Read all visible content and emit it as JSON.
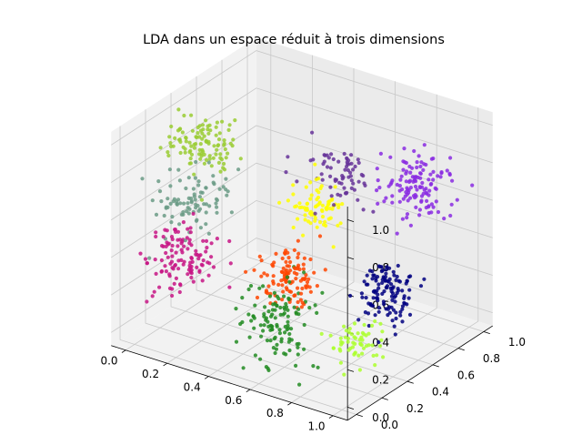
{
  "chart_data": {
    "type": "scatter",
    "title": "LDA dans un espace réduit à trois dimensions",
    "xlabel": "",
    "ylabel": "",
    "zlabel": "",
    "xlim": [
      0,
      1
    ],
    "ylim": [
      0,
      1
    ],
    "zlim": [
      0,
      1
    ],
    "x_ticks": [
      "0.0",
      "0.2",
      "0.4",
      "0.6",
      "0.8",
      "1.0"
    ],
    "y_ticks": [
      "0.0",
      "0.2",
      "0.4",
      "0.6",
      "0.8",
      "1.0"
    ],
    "z_ticks": [
      "0.0",
      "0.2",
      "0.4",
      "0.6",
      "0.8",
      "1.0"
    ],
    "grid": true,
    "legend": "none",
    "clusters": [
      {
        "color": "#9acd32",
        "center": [
          0.05,
          0.45,
          0.82
        ],
        "spread": [
          0.08,
          0.08,
          0.07
        ],
        "count": 110
      },
      {
        "color": "#6b9b86",
        "center": [
          0.08,
          0.32,
          0.58
        ],
        "spread": [
          0.08,
          0.08,
          0.07
        ],
        "count": 90
      },
      {
        "color": "#c71585",
        "center": [
          0.12,
          0.18,
          0.35
        ],
        "spread": [
          0.07,
          0.08,
          0.08
        ],
        "count": 120
      },
      {
        "color": "#8a2be2",
        "center": [
          0.82,
          0.88,
          0.68
        ],
        "spread": [
          0.07,
          0.07,
          0.07
        ],
        "count": 130
      },
      {
        "color": "#663399",
        "center": [
          0.55,
          0.72,
          0.7
        ],
        "spread": [
          0.08,
          0.08,
          0.07
        ],
        "count": 70
      },
      {
        "color": "#ffff00",
        "center": [
          0.5,
          0.62,
          0.55
        ],
        "spread": [
          0.06,
          0.06,
          0.05
        ],
        "count": 80
      },
      {
        "color": "#000080",
        "center": [
          0.88,
          0.55,
          0.28
        ],
        "spread": [
          0.06,
          0.07,
          0.08
        ],
        "count": 120
      },
      {
        "color": "#ff4500",
        "center": [
          0.5,
          0.4,
          0.3
        ],
        "spread": [
          0.06,
          0.06,
          0.07
        ],
        "count": 110
      },
      {
        "color": "#228b22",
        "center": [
          0.55,
          0.25,
          0.12
        ],
        "spread": [
          0.08,
          0.08,
          0.1
        ],
        "count": 120
      },
      {
        "color": "#adff2f",
        "center": [
          0.85,
          0.35,
          0.1
        ],
        "spread": [
          0.05,
          0.05,
          0.06
        ],
        "count": 60
      }
    ]
  }
}
